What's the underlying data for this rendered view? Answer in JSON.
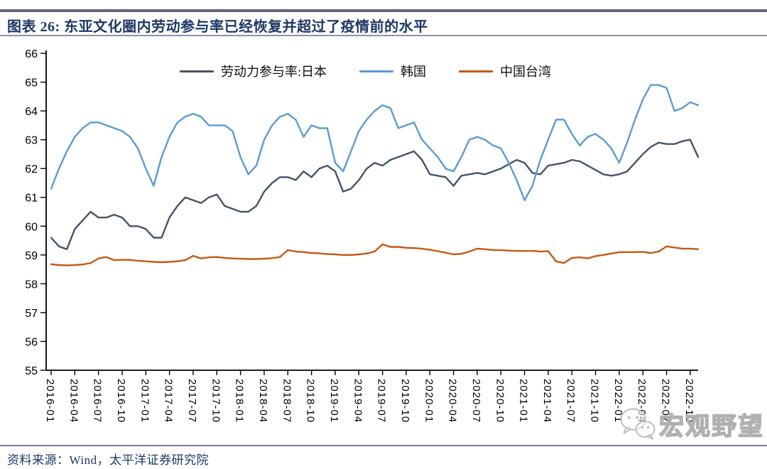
{
  "header": {
    "title": "图表 26:  东亚文化圈内劳动参与率已经恢复并超过了疫情前的水平"
  },
  "footer": {
    "source": "资料来源：Wind，太平洋证券研究院"
  },
  "watermark": {
    "icon": "wechat-icon",
    "label": "宏观野望"
  },
  "colors": {
    "title_text": "#1F3864",
    "header_bar": "#63637E",
    "rule": "#8F8FAD",
    "axis": "#000000"
  },
  "chart_data": {
    "type": "line",
    "title": "东亚文化圈内劳动参与率已经恢复并超过了疫情前的水平",
    "xlabel": "",
    "ylabel": "",
    "ylim": [
      55,
      66
    ],
    "y_tick_step": 1,
    "grid": false,
    "legend_position": "top",
    "x_start": "2016-01",
    "x_end": "2022-11",
    "x_frequency": "monthly",
    "x_tick_labels": [
      "2016-01",
      "2016-04",
      "2016-07",
      "2016-10",
      "2017-01",
      "2017-04",
      "2017-07",
      "2017-10",
      "2018-01",
      "2018-04",
      "2018-07",
      "2018-10",
      "2019-01",
      "2019-04",
      "2019-07",
      "2019-10",
      "2020-01",
      "2020-04",
      "2020-07",
      "2020-10",
      "2021-01",
      "2021-04",
      "2021-07",
      "2021-10",
      "2022-01",
      "2022-04",
      "2022-07",
      "2022-10"
    ],
    "series": [
      {
        "name": "劳动力参与率:日本",
        "color": "#44546A",
        "values": [
          59.6,
          59.3,
          59.2,
          59.9,
          60.2,
          60.5,
          60.3,
          60.3,
          60.4,
          60.3,
          60.0,
          60.0,
          59.9,
          59.6,
          59.6,
          60.3,
          60.7,
          61.0,
          60.9,
          60.8,
          61.0,
          61.1,
          60.7,
          60.6,
          60.5,
          60.5,
          60.7,
          61.2,
          61.5,
          61.7,
          61.7,
          61.6,
          61.9,
          61.7,
          62.0,
          62.1,
          61.9,
          61.2,
          61.3,
          61.6,
          62.0,
          62.2,
          62.1,
          62.3,
          62.4,
          62.5,
          62.6,
          62.3,
          61.8,
          61.75,
          61.7,
          61.4,
          61.75,
          61.8,
          61.85,
          61.8,
          61.9,
          62.0,
          62.15,
          62.3,
          62.2,
          61.85,
          61.8,
          62.1,
          62.15,
          62.2,
          62.3,
          62.25,
          62.1,
          61.95,
          61.8,
          61.75,
          61.8,
          61.9,
          62.2,
          62.5,
          62.75,
          62.9,
          62.85,
          62.85,
          62.95,
          63.0,
          62.4
        ]
      },
      {
        "name": "韩国",
        "color": "#5B9BD5",
        "values": [
          61.3,
          62.0,
          62.6,
          63.1,
          63.4,
          63.6,
          63.6,
          63.5,
          63.4,
          63.3,
          63.1,
          62.7,
          62.0,
          61.4,
          62.4,
          63.1,
          63.6,
          63.8,
          63.9,
          63.8,
          63.5,
          63.5,
          63.5,
          63.3,
          62.4,
          61.8,
          62.1,
          63.0,
          63.5,
          63.8,
          63.9,
          63.7,
          63.1,
          63.5,
          63.4,
          63.4,
          62.2,
          61.9,
          62.6,
          63.3,
          63.7,
          64.0,
          64.2,
          64.1,
          63.4,
          63.5,
          63.6,
          63.0,
          62.7,
          62.4,
          62.0,
          61.9,
          62.4,
          63.0,
          63.1,
          63.0,
          62.8,
          62.7,
          62.2,
          61.6,
          60.9,
          61.4,
          62.3,
          63.0,
          63.7,
          63.7,
          63.2,
          62.8,
          63.1,
          63.2,
          63.0,
          62.7,
          62.2,
          62.9,
          63.7,
          64.4,
          64.9,
          64.9,
          64.8,
          64.0,
          64.1,
          64.3,
          64.2
        ]
      },
      {
        "name": "中国台湾",
        "color": "#C55A11",
        "values": [
          58.68,
          58.65,
          58.64,
          58.65,
          58.67,
          58.72,
          58.88,
          58.93,
          58.82,
          58.83,
          58.83,
          58.8,
          58.78,
          58.76,
          58.75,
          58.76,
          58.78,
          58.82,
          58.97,
          58.88,
          58.92,
          58.93,
          58.9,
          58.88,
          58.87,
          58.86,
          58.86,
          58.87,
          58.89,
          58.93,
          59.17,
          59.12,
          59.1,
          59.07,
          59.06,
          59.03,
          59.02,
          59.0,
          59.0,
          59.02,
          59.05,
          59.12,
          59.37,
          59.28,
          59.28,
          59.25,
          59.24,
          59.22,
          59.18,
          59.13,
          59.08,
          59.02,
          59.04,
          59.12,
          59.22,
          59.2,
          59.17,
          59.17,
          59.15,
          59.14,
          59.14,
          59.14,
          59.12,
          59.13,
          58.78,
          58.72,
          58.9,
          58.92,
          58.88,
          58.96,
          59.0,
          59.05,
          59.1,
          59.1,
          59.1,
          59.11,
          59.07,
          59.12,
          59.3,
          59.26,
          59.22,
          59.22,
          59.2
        ]
      }
    ]
  }
}
